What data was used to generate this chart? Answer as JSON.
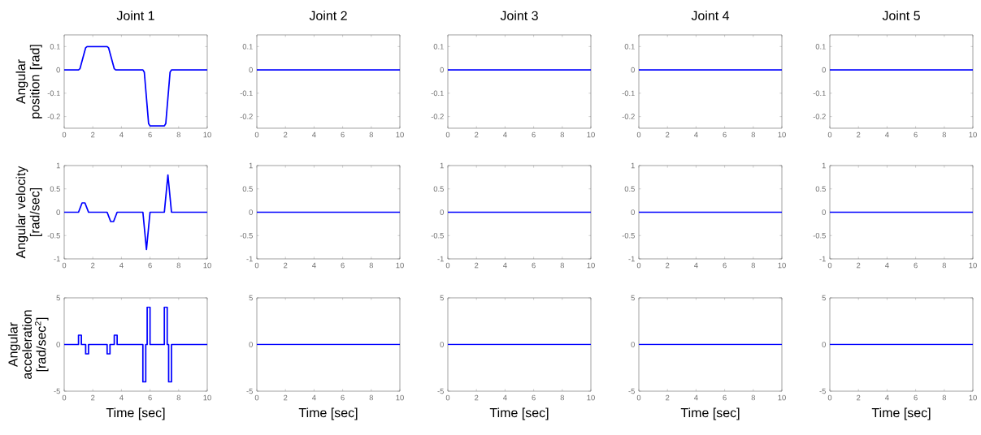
{
  "chart_data": [
    {
      "type": "line",
      "title": "Joint 1",
      "ylabel": "Angular position [rad]",
      "x": [
        0,
        1.0,
        1.1,
        1.5,
        1.6,
        3.0,
        3.1,
        3.5,
        3.6,
        5.5,
        5.6,
        5.9,
        6.0,
        7.0,
        7.1,
        7.4,
        7.5,
        10
      ],
      "values": [
        0,
        0,
        0.005,
        0.095,
        0.1,
        0.1,
        0.095,
        0.005,
        0,
        0,
        -0.01,
        -0.23,
        -0.24,
        -0.24,
        -0.23,
        -0.01,
        0,
        0
      ],
      "color": "#0000ff",
      "xlim": [
        0,
        10
      ],
      "ylim": [
        -0.25,
        0.15
      ],
      "xticks": [
        0,
        2,
        4,
        6,
        8,
        10
      ],
      "yticks": [
        -0.2,
        -0.1,
        0,
        0.1
      ]
    },
    {
      "type": "line",
      "title": "Joint 2",
      "x": [
        0,
        10
      ],
      "values": [
        0,
        0
      ],
      "color": "#0000ff",
      "xlim": [
        0,
        10
      ],
      "ylim": [
        -0.25,
        0.15
      ],
      "xticks": [
        0,
        2,
        4,
        6,
        8,
        10
      ],
      "yticks": [
        -0.2,
        -0.1,
        0,
        0.1
      ]
    },
    {
      "type": "line",
      "title": "Joint 3",
      "x": [
        0,
        10
      ],
      "values": [
        0,
        0
      ],
      "color": "#0000ff",
      "xlim": [
        0,
        10
      ],
      "ylim": [
        -0.25,
        0.15
      ],
      "xticks": [
        0,
        2,
        4,
        6,
        8,
        10
      ],
      "yticks": [
        -0.2,
        -0.1,
        0,
        0.1
      ]
    },
    {
      "type": "line",
      "title": "Joint 4",
      "x": [
        0,
        10
      ],
      "values": [
        0,
        0
      ],
      "color": "#0000ff",
      "xlim": [
        0,
        10
      ],
      "ylim": [
        -0.25,
        0.15
      ],
      "xticks": [
        0,
        2,
        4,
        6,
        8,
        10
      ],
      "yticks": [
        -0.2,
        -0.1,
        0,
        0.1
      ]
    },
    {
      "type": "line",
      "title": "Joint 5",
      "x": [
        0,
        10
      ],
      "values": [
        0,
        0
      ],
      "color": "#0000ff",
      "xlim": [
        0,
        10
      ],
      "ylim": [
        -0.25,
        0.15
      ],
      "xticks": [
        0,
        2,
        4,
        6,
        8,
        10
      ],
      "yticks": [
        -0.2,
        -0.1,
        0,
        0.1
      ]
    },
    {
      "type": "line",
      "ylabel": "Angular velocity [rad/sec]",
      "x": [
        0,
        1.0,
        1.25,
        1.45,
        1.7,
        3.0,
        3.25,
        3.45,
        3.7,
        5.5,
        5.75,
        6.0,
        7.0,
        7.25,
        7.5,
        10
      ],
      "values": [
        0,
        0,
        0.2,
        0.2,
        0,
        0,
        -0.2,
        -0.2,
        0,
        0,
        -0.8,
        0,
        0,
        0.8,
        0,
        0
      ],
      "color": "#0000ff",
      "xlim": [
        0,
        10
      ],
      "ylim": [
        -1,
        1
      ],
      "xticks": [
        0,
        2,
        4,
        6,
        8,
        10
      ],
      "yticks": [
        -1,
        -0.5,
        0,
        0.5,
        1
      ]
    },
    {
      "type": "line",
      "x": [
        0,
        10
      ],
      "values": [
        0,
        0
      ],
      "color": "#0000ff",
      "xlim": [
        0,
        10
      ],
      "ylim": [
        -1,
        1
      ],
      "xticks": [
        0,
        2,
        4,
        6,
        8,
        10
      ],
      "yticks": [
        -1,
        -0.5,
        0,
        0.5,
        1
      ]
    },
    {
      "type": "line",
      "x": [
        0,
        10
      ],
      "values": [
        0,
        0
      ],
      "color": "#0000ff",
      "xlim": [
        0,
        10
      ],
      "ylim": [
        -1,
        1
      ],
      "xticks": [
        0,
        2,
        4,
        6,
        8,
        10
      ],
      "yticks": [
        -1,
        -0.5,
        0,
        0.5,
        1
      ]
    },
    {
      "type": "line",
      "x": [
        0,
        10
      ],
      "values": [
        0,
        0
      ],
      "color": "#0000ff",
      "xlim": [
        0,
        10
      ],
      "ylim": [
        -1,
        1
      ],
      "xticks": [
        0,
        2,
        4,
        6,
        8,
        10
      ],
      "yticks": [
        -1,
        -0.5,
        0,
        0.5,
        1
      ]
    },
    {
      "type": "line",
      "x": [
        0,
        10
      ],
      "values": [
        0,
        0
      ],
      "color": "#0000ff",
      "xlim": [
        0,
        10
      ],
      "ylim": [
        -1,
        1
      ],
      "xticks": [
        0,
        2,
        4,
        6,
        8,
        10
      ],
      "yticks": [
        -1,
        -0.5,
        0,
        0.5,
        1
      ]
    },
    {
      "type": "line",
      "ylabel": "Angular acceleration [rad/sec$^{2}$]",
      "xlabel": "Time [sec]",
      "x": [
        0,
        1.0,
        1.0,
        1.2,
        1.2,
        1.5,
        1.5,
        1.7,
        1.7,
        3.0,
        3.0,
        3.2,
        3.2,
        3.5,
        3.5,
        3.7,
        3.7,
        5.5,
        5.5,
        5.7,
        5.7,
        5.8,
        5.8,
        6.0,
        6.0,
        7.0,
        7.0,
        7.2,
        7.2,
        7.3,
        7.3,
        7.5,
        7.5,
        10
      ],
      "values": [
        0,
        0,
        1,
        1,
        0,
        0,
        -1,
        -1,
        0,
        0,
        -1,
        -1,
        0,
        0,
        1,
        1,
        0,
        0,
        -4,
        -4,
        0,
        0,
        4,
        4,
        0,
        0,
        4,
        4,
        0,
        0,
        -4,
        -4,
        0,
        0
      ],
      "color": "#0000ff",
      "xlim": [
        0,
        10
      ],
      "ylim": [
        -5,
        5
      ],
      "xticks": [
        0,
        2,
        4,
        6,
        8,
        10
      ],
      "yticks": [
        -5,
        0,
        5
      ]
    },
    {
      "type": "line",
      "xlabel": "Time [sec]",
      "x": [
        0,
        10
      ],
      "values": [
        0,
        0
      ],
      "color": "#0000ff",
      "xlim": [
        0,
        10
      ],
      "ylim": [
        -5,
        5
      ],
      "xticks": [
        0,
        2,
        4,
        6,
        8,
        10
      ],
      "yticks": [
        -5,
        0,
        5
      ]
    },
    {
      "type": "line",
      "xlabel": "Time [sec]",
      "x": [
        0,
        10
      ],
      "values": [
        0,
        0
      ],
      "color": "#0000ff",
      "xlim": [
        0,
        10
      ],
      "ylim": [
        -5,
        5
      ],
      "xticks": [
        0,
        2,
        4,
        6,
        8,
        10
      ],
      "yticks": [
        -5,
        0,
        5
      ]
    },
    {
      "type": "line",
      "xlabel": "Time [sec]",
      "x": [
        0,
        10
      ],
      "values": [
        0,
        0
      ],
      "color": "#0000ff",
      "xlim": [
        0,
        10
      ],
      "ylim": [
        -5,
        5
      ],
      "xticks": [
        0,
        2,
        4,
        6,
        8,
        10
      ],
      "yticks": [
        -5,
        0,
        5
      ]
    },
    {
      "type": "line",
      "xlabel": "Time [sec]",
      "x": [
        0,
        10
      ],
      "values": [
        0,
        0
      ],
      "color": "#0000ff",
      "xlim": [
        0,
        10
      ],
      "ylim": [
        -5,
        5
      ],
      "xticks": [
        0,
        2,
        4,
        6,
        8,
        10
      ],
      "yticks": [
        -5,
        0,
        5
      ]
    }
  ]
}
